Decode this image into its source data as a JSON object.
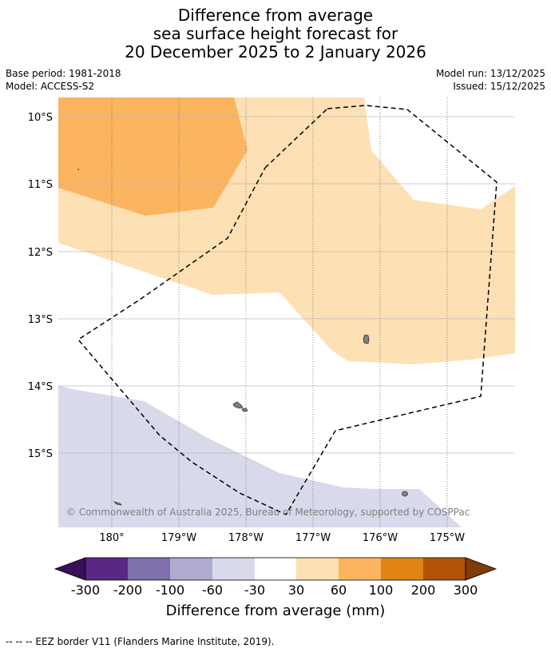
{
  "title": {
    "line1": "Difference from average",
    "line2": "sea surface height forecast for",
    "line3": "20 December 2025 to 2 January 2026"
  },
  "meta": {
    "base_period": "Base period: 1981-2018",
    "model": "Model: ACCESS-S2",
    "model_run": "Model run: 13/12/2025",
    "issued": "Issued: 15/12/2025"
  },
  "map": {
    "lat_labels": [
      "10°S",
      "11°S",
      "12°S",
      "13°S",
      "14°S",
      "15°S"
    ],
    "lon_labels": [
      "180°",
      "179°W",
      "178°W",
      "177°W",
      "176°W",
      "175°W"
    ],
    "copyright": "© Commonwealth of Australia 2025, Bureau of Meteorology, supported by COSPPac",
    "region_values_mm": {
      "northwest_patch": "60 to 100",
      "central_band": "30 to 60",
      "southwest_band": "-60 to -30"
    }
  },
  "colorbar": {
    "tick_labels": [
      "-300",
      "-200",
      "-100",
      "-60",
      "-30",
      "30",
      "60",
      "100",
      "200",
      "300"
    ],
    "colors": [
      "#3b0f5a",
      "#5a2785",
      "#7f6fac",
      "#b1aad0",
      "#d8d9ea",
      "#ffffff",
      "#fde0b4",
      "#fbb460",
      "#e18315",
      "#b25307",
      "#7f3b08"
    ],
    "label": "Difference from average (mm)"
  },
  "legend": {
    "eez_text": "--  --  -- EEZ border V11 (Flanders Marine Institute, 2019)."
  }
}
